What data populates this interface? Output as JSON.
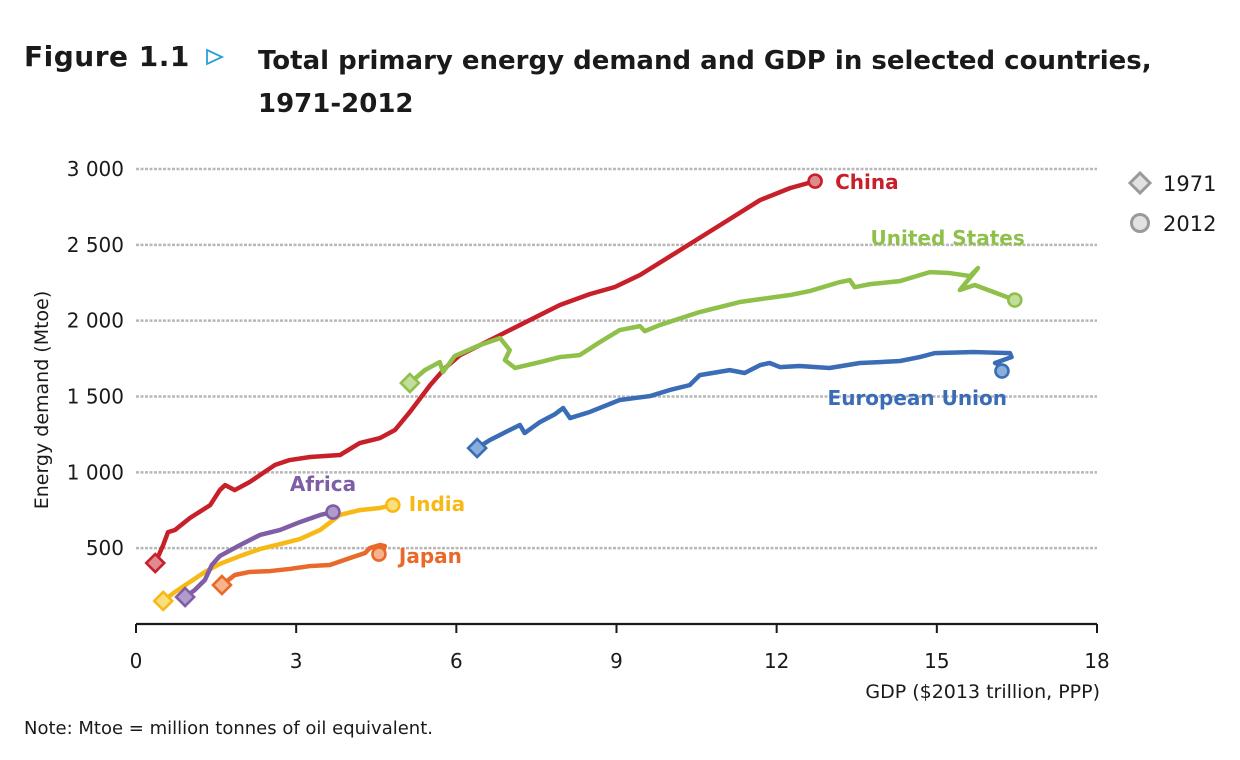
{
  "figure": {
    "label": "Figure 1.1",
    "marker_icon": "triangle-right-outline-icon",
    "title": "Total primary energy demand and GDP in selected countries, 1971-2012",
    "note": "Note: Mtoe = million tonnes of oil equivalent."
  },
  "chart_data": {
    "type": "line",
    "title": "Total primary energy demand and GDP in selected countries, 1971-2012",
    "xlabel": "GDP ($2013 trillion, PPP)",
    "ylabel": "Energy demand (Mtoe)",
    "xlim": [
      0,
      18
    ],
    "ylim": [
      0,
      3000
    ],
    "xticks": [
      0,
      3,
      6,
      9,
      12,
      15,
      18
    ],
    "xtick_labels": [
      "0",
      "3",
      "6",
      "9",
      "12",
      "15",
      "18"
    ],
    "yticks": [
      500,
      1000,
      1500,
      2000,
      2500,
      3000
    ],
    "ytick_labels": [
      "500",
      "1 000",
      "1 500",
      "2 000",
      "2 500",
      "3 000"
    ],
    "grid": "horizontal-dotted",
    "legend": {
      "placement": "top-right",
      "entries": [
        {
          "label": "1971",
          "marker": "diamond"
        },
        {
          "label": "2012",
          "marker": "circle"
        }
      ]
    },
    "series": [
      {
        "name": "China",
        "color": "#c8202a",
        "fill": "#de8a8e",
        "label_position": "right-of-end",
        "points": [
          [
            0.36,
            402
          ],
          [
            0.51,
            521
          ],
          [
            0.6,
            606
          ],
          [
            0.73,
            620
          ],
          [
            1.01,
            699
          ],
          [
            1.39,
            784
          ],
          [
            1.57,
            883
          ],
          [
            1.67,
            916
          ],
          [
            1.85,
            883
          ],
          [
            2.13,
            936
          ],
          [
            2.6,
            1048
          ],
          [
            2.88,
            1081
          ],
          [
            3.26,
            1101
          ],
          [
            3.82,
            1114
          ],
          [
            4.19,
            1193
          ],
          [
            4.57,
            1226
          ],
          [
            4.85,
            1279
          ],
          [
            5.13,
            1398
          ],
          [
            5.51,
            1575
          ],
          [
            5.79,
            1688
          ],
          [
            6.07,
            1773
          ],
          [
            6.63,
            1872
          ],
          [
            7.19,
            1971
          ],
          [
            7.94,
            2103
          ],
          [
            8.5,
            2175
          ],
          [
            8.97,
            2222
          ],
          [
            9.44,
            2301
          ],
          [
            10.19,
            2465
          ],
          [
            10.94,
            2630
          ],
          [
            11.69,
            2795
          ],
          [
            12.25,
            2874
          ],
          [
            12.72,
            2920
          ]
        ]
      },
      {
        "name": "United States",
        "color": "#8fc04a",
        "fill": "#c3dd9c",
        "label_position": "above-end",
        "points": [
          [
            5.13,
            1589
          ],
          [
            5.41,
            1674
          ],
          [
            5.69,
            1727
          ],
          [
            5.75,
            1661
          ],
          [
            5.97,
            1767
          ],
          [
            6.44,
            1839
          ],
          [
            6.82,
            1885
          ],
          [
            7.0,
            1806
          ],
          [
            6.91,
            1740
          ],
          [
            7.1,
            1688
          ],
          [
            7.57,
            1727
          ],
          [
            7.94,
            1760
          ],
          [
            8.31,
            1773
          ],
          [
            8.69,
            1859
          ],
          [
            9.06,
            1938
          ],
          [
            9.44,
            1964
          ],
          [
            9.53,
            1931
          ],
          [
            9.81,
            1971
          ],
          [
            10.56,
            2057
          ],
          [
            11.31,
            2123
          ],
          [
            11.69,
            2142
          ],
          [
            12.25,
            2169
          ],
          [
            12.62,
            2195
          ],
          [
            13.18,
            2254
          ],
          [
            13.37,
            2268
          ],
          [
            13.46,
            2221
          ],
          [
            13.75,
            2241
          ],
          [
            14.31,
            2261
          ],
          [
            14.87,
            2320
          ],
          [
            15.24,
            2314
          ],
          [
            15.62,
            2294
          ],
          [
            15.77,
            2347
          ],
          [
            15.43,
            2202
          ],
          [
            15.71,
            2235
          ],
          [
            16.46,
            2136
          ]
        ]
      },
      {
        "name": "European Union",
        "color": "#3a6db5",
        "fill": "#8aaedc",
        "label_position": "below-end",
        "points": [
          [
            6.39,
            1160
          ],
          [
            6.63,
            1213
          ],
          [
            7.0,
            1279
          ],
          [
            7.19,
            1312
          ],
          [
            7.28,
            1259
          ],
          [
            7.57,
            1332
          ],
          [
            7.85,
            1384
          ],
          [
            8.0,
            1424
          ],
          [
            8.13,
            1358
          ],
          [
            8.5,
            1398
          ],
          [
            9.06,
            1477
          ],
          [
            9.63,
            1503
          ],
          [
            10.0,
            1543
          ],
          [
            10.37,
            1575
          ],
          [
            10.56,
            1641
          ],
          [
            11.12,
            1674
          ],
          [
            11.4,
            1655
          ],
          [
            11.69,
            1707
          ],
          [
            11.87,
            1721
          ],
          [
            12.06,
            1694
          ],
          [
            12.43,
            1701
          ],
          [
            12.99,
            1688
          ],
          [
            13.56,
            1721
          ],
          [
            13.93,
            1727
          ],
          [
            14.31,
            1734
          ],
          [
            14.68,
            1760
          ],
          [
            14.96,
            1786
          ],
          [
            15.71,
            1793
          ],
          [
            16.37,
            1786
          ],
          [
            16.4,
            1760
          ],
          [
            16.09,
            1721
          ],
          [
            16.18,
            1707
          ],
          [
            16.22,
            1668
          ]
        ]
      },
      {
        "name": "India",
        "color": "#f7b916",
        "fill": "#fbdf7e",
        "label_position": "right-of-end",
        "points": [
          [
            0.51,
            152
          ],
          [
            0.73,
            211
          ],
          [
            1.01,
            277
          ],
          [
            1.29,
            343
          ],
          [
            1.57,
            396
          ],
          [
            1.95,
            448
          ],
          [
            2.32,
            494
          ],
          [
            2.7,
            527
          ],
          [
            3.07,
            560
          ],
          [
            3.45,
            620
          ],
          [
            3.82,
            719
          ],
          [
            4.19,
            751
          ],
          [
            4.57,
            765
          ],
          [
            4.81,
            784
          ]
        ]
      },
      {
        "name": "Africa",
        "color": "#7f5ea5",
        "fill": "#b09ccb",
        "label_position": "above-end",
        "points": [
          [
            0.92,
            178
          ],
          [
            1.1,
            224
          ],
          [
            1.29,
            290
          ],
          [
            1.42,
            389
          ],
          [
            1.57,
            448
          ],
          [
            1.95,
            521
          ],
          [
            2.32,
            587
          ],
          [
            2.7,
            620
          ],
          [
            3.07,
            672
          ],
          [
            3.45,
            719
          ],
          [
            3.69,
            738
          ]
        ]
      },
      {
        "name": "Japan",
        "color": "#e8692a",
        "fill": "#f5b48e",
        "label_position": "right-of-end",
        "points": [
          [
            1.61,
            257
          ],
          [
            1.85,
            323
          ],
          [
            2.13,
            343
          ],
          [
            2.51,
            349
          ],
          [
            2.88,
            363
          ],
          [
            3.26,
            382
          ],
          [
            3.63,
            389
          ],
          [
            4.01,
            435
          ],
          [
            4.29,
            468
          ],
          [
            4.38,
            501
          ],
          [
            4.57,
            521
          ],
          [
            4.66,
            514
          ],
          [
            4.63,
            481
          ],
          [
            4.55,
            461
          ]
        ]
      }
    ]
  }
}
